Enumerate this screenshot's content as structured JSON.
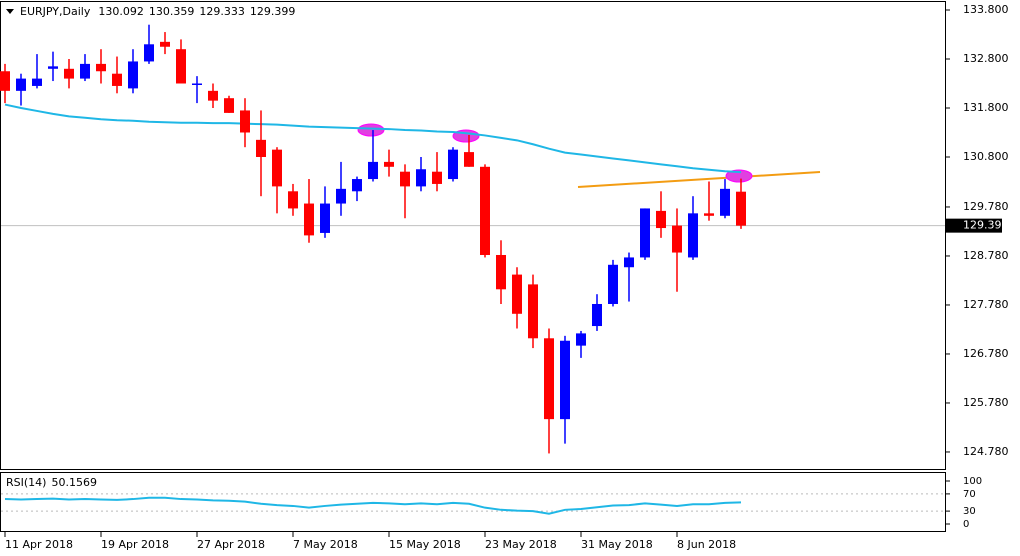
{
  "chart_data": {
    "type": "candlestick",
    "title": "EURJPY,Daily",
    "categories": [
      "11 Apr 2018",
      null,
      null,
      null,
      null,
      null,
      "19 Apr 2018",
      null,
      null,
      null,
      null,
      null,
      "27 Apr 2018",
      null,
      null,
      null,
      null,
      null,
      "7 May 2018",
      null,
      null,
      null,
      null,
      null,
      "15 May 2018",
      null,
      null,
      null,
      null,
      null,
      "23 May 2018",
      null,
      null,
      null,
      null,
      null,
      "31 May 2018",
      null,
      null,
      null,
      null,
      null,
      "8 Jun 2018",
      null,
      null,
      null,
      null
    ],
    "open": [
      132.55,
      132.15,
      132.25,
      132.6,
      132.6,
      132.4,
      132.7,
      132.5,
      132.2,
      132.75,
      133.15,
      133.0,
      132.3,
      132.15,
      132.0,
      131.75,
      131.15,
      130.95,
      130.1,
      129.85,
      129.25,
      129.85,
      130.1,
      130.35,
      130.7,
      130.5,
      130.2,
      130.5,
      130.35,
      130.9,
      130.6,
      128.8,
      128.4,
      128.2,
      127.1,
      125.45,
      126.95,
      127.35,
      127.8,
      128.55,
      128.75,
      129.7,
      129.4,
      128.75,
      129.65,
      129.6,
      130.092
    ],
    "high": [
      132.7,
      132.5,
      132.9,
      132.95,
      132.8,
      132.9,
      133.0,
      132.85,
      133.0,
      133.5,
      133.35,
      133.2,
      132.45,
      132.3,
      132.05,
      132.0,
      131.75,
      131.0,
      130.25,
      130.35,
      130.2,
      130.7,
      130.4,
      131.35,
      130.95,
      130.65,
      130.8,
      130.9,
      131.0,
      131.25,
      130.65,
      129.1,
      128.55,
      128.4,
      127.3,
      127.15,
      127.25,
      128.0,
      128.7,
      128.85,
      129.75,
      130.1,
      129.75,
      130.0,
      130.3,
      130.35,
      130.359
    ],
    "low": [
      131.9,
      131.85,
      132.2,
      132.35,
      132.2,
      132.35,
      132.3,
      132.1,
      132.1,
      132.7,
      132.9,
      132.3,
      131.9,
      131.8,
      131.7,
      131.0,
      130.0,
      129.65,
      129.6,
      129.05,
      129.15,
      129.6,
      129.9,
      130.3,
      130.4,
      129.55,
      130.1,
      130.1,
      130.3,
      130.6,
      128.75,
      127.8,
      127.3,
      126.9,
      124.75,
      124.95,
      126.7,
      127.25,
      127.75,
      127.85,
      128.7,
      129.15,
      128.05,
      128.7,
      129.5,
      129.55,
      129.333
    ],
    "close": [
      132.15,
      132.4,
      132.4,
      132.65,
      132.4,
      132.7,
      132.55,
      132.25,
      132.75,
      133.1,
      133.05,
      132.3,
      132.3,
      131.95,
      131.7,
      131.3,
      130.8,
      130.2,
      129.75,
      129.2,
      129.85,
      130.15,
      130.35,
      130.7,
      130.6,
      130.2,
      130.55,
      130.25,
      130.95,
      130.6,
      128.8,
      128.1,
      127.6,
      127.1,
      125.45,
      127.05,
      127.2,
      127.8,
      128.6,
      128.75,
      129.75,
      129.35,
      128.85,
      129.65,
      129.6,
      130.15,
      129.399
    ],
    "up_color": "#0000ff",
    "down_color": "#ff0000",
    "ma": {
      "color": "#1fb7e6",
      "values": [
        131.87,
        131.8,
        131.74,
        131.68,
        131.63,
        131.6,
        131.57,
        131.55,
        131.54,
        131.52,
        131.51,
        131.5,
        131.5,
        131.49,
        131.49,
        131.48,
        131.47,
        131.46,
        131.44,
        131.42,
        131.41,
        131.4,
        131.39,
        131.38,
        131.37,
        131.35,
        131.34,
        131.32,
        131.31,
        131.28,
        131.24,
        131.19,
        131.14,
        131.06,
        130.97,
        130.89,
        130.85,
        130.81,
        130.77,
        130.73,
        130.69,
        130.65,
        130.61,
        130.57,
        130.54,
        130.51,
        130.49
      ]
    },
    "ylim": [
      124.412,
      134.004
    ],
    "yticks": [
      {
        "value": 133.8,
        "label": "133.800"
      },
      {
        "value": 132.8,
        "label": "132.800"
      },
      {
        "value": 131.8,
        "label": "131.800"
      },
      {
        "value": 130.8,
        "label": "130.800"
      },
      {
        "value": 129.78,
        "label": "129.780"
      },
      {
        "value": 128.78,
        "label": "128.780"
      },
      {
        "value": 127.78,
        "label": "127.780"
      },
      {
        "value": 126.78,
        "label": "126.780"
      },
      {
        "value": 125.78,
        "label": "125.780"
      },
      {
        "value": 124.78,
        "label": "124.780"
      }
    ],
    "rsi": {
      "name": "RSI(14)",
      "color": "#1fb7e6",
      "ylim": [
        0,
        100
      ],
      "yticks": [
        100,
        70,
        30,
        0
      ],
      "values": [
        58,
        57,
        58,
        59,
        57,
        58,
        57,
        56,
        58,
        61,
        61,
        58,
        57,
        55,
        54,
        52,
        47,
        44,
        42,
        38,
        42,
        45,
        47,
        49,
        48,
        46,
        48,
        46,
        49,
        47,
        38,
        33,
        31,
        30,
        24,
        33,
        35,
        39,
        43,
        44,
        48,
        45,
        42,
        46,
        46,
        49,
        50.1569
      ]
    }
  }
}
